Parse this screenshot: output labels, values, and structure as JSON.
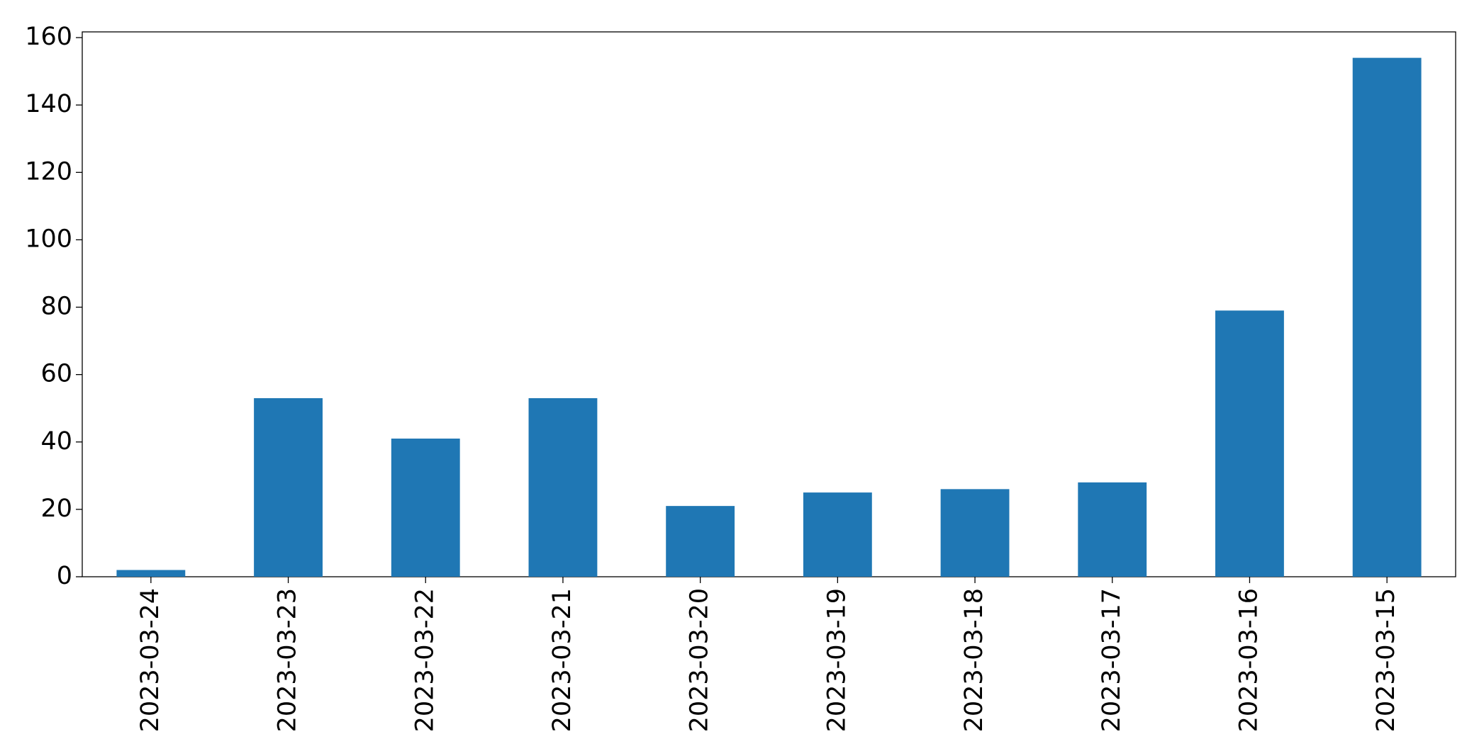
{
  "chart_data": {
    "type": "bar",
    "categories": [
      "2023-03-24",
      "2023-03-23",
      "2023-03-22",
      "2023-03-21",
      "2023-03-20",
      "2023-03-19",
      "2023-03-18",
      "2023-03-17",
      "2023-03-16",
      "2023-03-15"
    ],
    "values": [
      2,
      53,
      41,
      53,
      21,
      25,
      26,
      28,
      79,
      154
    ],
    "color": "#1f77b4",
    "ylim": [
      0,
      161.7
    ],
    "yticks": [
      0,
      20,
      40,
      60,
      80,
      100,
      120,
      140,
      160
    ],
    "grid": false
  }
}
